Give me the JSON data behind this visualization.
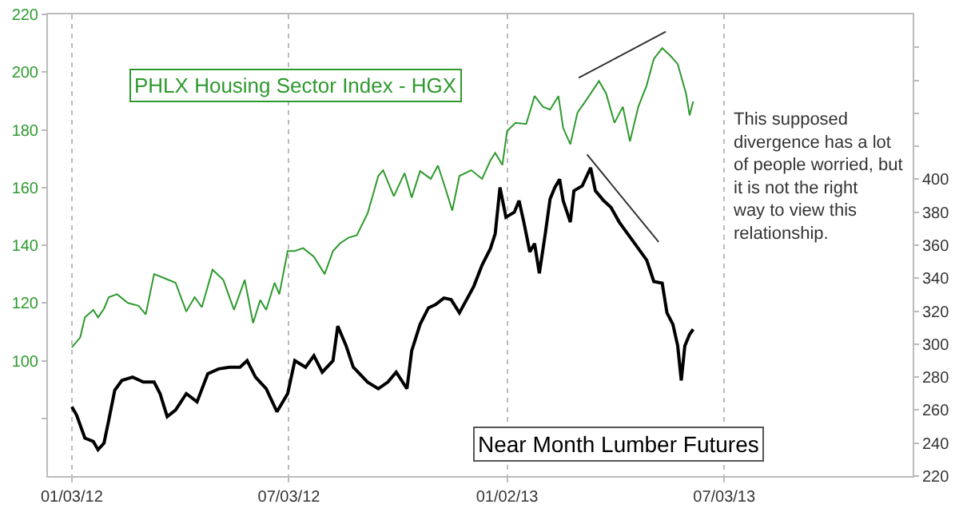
{
  "chart_data": {
    "type": "line",
    "x": [
      "2012-01-03",
      "2012-01-10",
      "2012-01-14",
      "2012-01-21",
      "2012-01-25",
      "2012-01-30",
      "2012-02-03",
      "2012-02-10",
      "2012-02-19",
      "2012-02-28",
      "2012-03-05",
      "2012-03-12",
      "2012-03-21",
      "2012-03-30",
      "2012-04-08",
      "2012-04-15",
      "2012-04-21",
      "2012-04-30",
      "2012-05-09",
      "2012-05-18",
      "2012-05-27",
      "2012-06-03",
      "2012-06-09",
      "2012-06-14",
      "2012-06-21",
      "2012-06-25",
      "2012-07-02",
      "2012-07-08",
      "2012-07-15",
      "2012-07-24",
      "2012-08-02",
      "2012-08-09",
      "2012-08-15",
      "2012-08-22",
      "2012-08-29",
      "2012-09-07",
      "2012-09-16",
      "2012-09-20",
      "2012-09-29",
      "2012-10-08",
      "2012-10-14",
      "2012-10-21",
      "2012-10-30",
      "2012-11-05",
      "2012-11-11",
      "2012-11-17",
      "2012-11-23",
      "2012-12-03",
      "2012-12-12",
      "2012-12-19",
      "2012-12-23",
      "2012-12-29",
      "2013-01-02",
      "2013-01-09",
      "2013-01-18",
      "2013-01-25",
      "2013-02-01",
      "2013-02-07",
      "2013-02-14",
      "2013-02-18",
      "2013-02-24",
      "2013-03-02",
      "2013-03-10",
      "2013-03-20",
      "2013-03-26",
      "2013-04-02",
      "2013-04-09",
      "2013-04-15",
      "2013-04-22",
      "2013-04-29",
      "2013-05-05",
      "2013-05-12",
      "2013-05-19",
      "2013-05-25",
      "2013-06-01",
      "2013-06-04",
      "2013-06-07"
    ],
    "series": [
      {
        "name": "PHLX Housing Sector Index - HGX",
        "color": "#2e9a2e",
        "values": [
          104.6,
          108,
          115,
          117.6,
          115,
          118,
          122,
          123,
          120,
          119,
          116,
          130,
          128.5,
          127,
          117,
          122,
          118.5,
          131.5,
          128,
          117.6,
          128,
          113,
          121,
          117.6,
          127,
          123,
          138,
          138,
          139,
          136,
          130,
          138,
          140.7,
          142.6,
          143.5,
          151,
          164,
          166,
          157,
          165,
          156.5,
          165.7,
          163,
          167.6,
          160,
          152,
          164,
          166,
          163,
          169.4,
          172,
          167.8,
          179.6,
          182.4,
          182,
          191.7,
          188,
          187,
          191.7,
          180.6,
          175,
          186,
          190.7,
          196.9,
          192.6,
          182.4,
          188,
          176,
          188,
          195.4,
          204.6,
          208.3,
          205.6,
          202.8,
          192.6,
          185,
          189.8
        ]
      },
      {
        "name": "Near Month Lumber Futures",
        "color": "#000000",
        "axis": "y2",
        "x": [
          "2012-01-03",
          "2012-01-07",
          "2012-01-14",
          "2012-01-21",
          "2012-01-25",
          "2012-01-30",
          "2012-02-03",
          "2012-02-08",
          "2012-02-14",
          "2012-02-23",
          "2012-03-03",
          "2012-03-12",
          "2012-03-17",
          "2012-03-23",
          "2012-03-30",
          "2012-04-08",
          "2012-04-17",
          "2012-04-26",
          "2012-05-05",
          "2012-05-14",
          "2012-05-23",
          "2012-05-29",
          "2012-06-05",
          "2012-06-14",
          "2012-06-23",
          "2012-07-02",
          "2012-07-08",
          "2012-07-17",
          "2012-07-24",
          "2012-07-31",
          "2012-08-09",
          "2012-08-13",
          "2012-08-20",
          "2012-08-26",
          "2012-09-07",
          "2012-09-16",
          "2012-09-24",
          "2012-10-01",
          "2012-10-10",
          "2012-10-14",
          "2012-10-21",
          "2012-10-28",
          "2012-11-03",
          "2012-11-10",
          "2012-11-16",
          "2012-11-23",
          "2012-12-05",
          "2012-12-12",
          "2012-12-19",
          "2012-12-23",
          "2012-12-27",
          "2013-01-01",
          "2013-01-08",
          "2013-01-12",
          "2013-01-16",
          "2013-01-21",
          "2013-01-25",
          "2013-01-29",
          "2013-02-03",
          "2013-02-07",
          "2013-02-11",
          "2013-02-15",
          "2013-02-18",
          "2013-02-24",
          "2013-02-27",
          "2013-03-06",
          "2013-03-13",
          "2013-03-17",
          "2013-03-24",
          "2013-03-30",
          "2013-04-06",
          "2013-04-13",
          "2013-04-19",
          "2013-04-29",
          "2013-05-05",
          "2013-05-12",
          "2013-05-16",
          "2013-05-21",
          "2013-05-25",
          "2013-05-28",
          "2013-05-31",
          "2013-06-04",
          "2013-06-07"
        ],
        "values": [
          262,
          257,
          243,
          241,
          236,
          240,
          254,
          272,
          278,
          280,
          277,
          277,
          270,
          256,
          260,
          270,
          265,
          282,
          285,
          286,
          286,
          290,
          280,
          273,
          259,
          270,
          290,
          286,
          293,
          283,
          290,
          311,
          299,
          286,
          277,
          273,
          277,
          283,
          273,
          296,
          312,
          322,
          324,
          328,
          327,
          319,
          335,
          348,
          358,
          367,
          395,
          377,
          380,
          387,
          374,
          356,
          361,
          343,
          367,
          388,
          395,
          400,
          387,
          374,
          393,
          396,
          407,
          393,
          387,
          383,
          374,
          367,
          361,
          351,
          338,
          337,
          319,
          312,
          299,
          278,
          299,
          306,
          309
        ]
      },
      {
        "color": "#333333",
        "x": [
          "2013-03-03",
          "2013-05-15"
        ],
        "values": [
          198,
          214
        ]
      },
      {
        "color": "#333333",
        "axis": "y2",
        "x": [
          "2013-03-10",
          "2013-05-09"
        ],
        "values": [
          415,
          362
        ]
      }
    ],
    "annotations": [
      "This supposed divergence has a lot of people worried, but it is not the right way to view this relationship."
    ],
    "xlim": [
      "2011-12-14",
      "2013-12-08"
    ],
    "xticks": [
      {
        "value": "2012-01-03",
        "label": "01/03/12"
      },
      {
        "value": "2012-07-03",
        "label": "07/03/12"
      },
      {
        "value": "2013-01-02",
        "label": "01/02/13"
      },
      {
        "value": "2013-07-03",
        "label": "07/03/13"
      }
    ],
    "ylim": [
      60,
      220
    ],
    "yticks": [
      {
        "value": 80,
        "label": null
      },
      100,
      120,
      140,
      160,
      180,
      200,
      220
    ],
    "y2lim": [
      220,
      500
    ],
    "y2ticks": [
      220,
      240,
      260,
      280,
      300,
      320,
      340,
      360,
      380,
      400,
      {
        "value": 420,
        "label": null
      },
      {
        "value": 440,
        "label": null
      },
      {
        "value": 460,
        "label": null
      },
      {
        "value": 480,
        "label": null
      }
    ],
    "grid": "x",
    "legend": false,
    "marker": "none",
    "line_style": "solid"
  }
}
